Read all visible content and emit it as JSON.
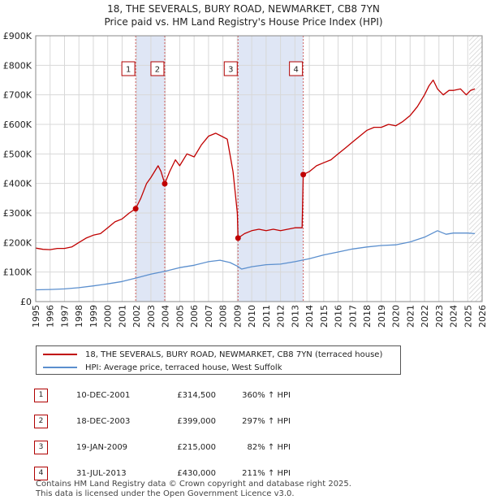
{
  "header": {
    "title_line1": "18, THE SEVERALS, BURY ROAD, NEWMARKET, CB8 7YN",
    "title_line2": "Price paid vs. HM Land Registry's House Price Index (HPI)"
  },
  "colors": {
    "price_line": "#c00000",
    "hpi_line": "#5b8fce",
    "highlight_fill": "#dfe6f5",
    "hatch": "#c8c8c8",
    "grid": "#d8d8d8",
    "dashed": "#d06060"
  },
  "chart_data": {
    "type": "line",
    "title": "Price paid vs. HM Land Registry's House Price Index (HPI)",
    "xlim": [
      1995,
      2026
    ],
    "ylim": [
      0,
      900000
    ],
    "x_ticks": [
      "1995",
      "1996",
      "1997",
      "1998",
      "1999",
      "2000",
      "2001",
      "2002",
      "2003",
      "2004",
      "2005",
      "2006",
      "2007",
      "2008",
      "2009",
      "2010",
      "2011",
      "2012",
      "2013",
      "2014",
      "2015",
      "2016",
      "2017",
      "2018",
      "2019",
      "2020",
      "2021",
      "2022",
      "2023",
      "2024",
      "2025",
      "2026"
    ],
    "y_ticks": [
      {
        "value": 0,
        "label": "£0"
      },
      {
        "value": 100000,
        "label": "£100K"
      },
      {
        "value": 200000,
        "label": "£200K"
      },
      {
        "value": 300000,
        "label": "£300K"
      },
      {
        "value": 400000,
        "label": "£400K"
      },
      {
        "value": 500000,
        "label": "£500K"
      },
      {
        "value": 600000,
        "label": "£600K"
      },
      {
        "value": 700000,
        "label": "£700K"
      },
      {
        "value": 800000,
        "label": "£800K"
      },
      {
        "value": 900000,
        "label": "£900K"
      }
    ],
    "highlight_spans": [
      [
        2001.94,
        2003.96
      ],
      [
        2009.05,
        2013.58
      ]
    ],
    "future_from": 2025.1,
    "series": [
      {
        "name": "18, THE SEVERALS, BURY ROAD, NEWMARKET, CB8 7YN (terraced house)",
        "x": [
          1995.0,
          1995.5,
          1996.0,
          1996.5,
          1997.0,
          1997.5,
          1998.0,
          1998.5,
          1999.0,
          1999.5,
          2000.0,
          2000.5,
          2001.0,
          2001.5,
          2001.94,
          2002.3,
          2002.7,
          2003.0,
          2003.5,
          2003.7,
          2003.96,
          2004.3,
          2004.7,
          2005.0,
          2005.5,
          2006.0,
          2006.5,
          2007.0,
          2007.5,
          2007.9,
          2008.3,
          2008.7,
          2009.0,
          2009.05,
          2009.5,
          2010.0,
          2010.5,
          2011.0,
          2011.5,
          2012.0,
          2012.5,
          2013.0,
          2013.5,
          2013.58,
          2014.0,
          2014.5,
          2015.0,
          2015.5,
          2016.0,
          2016.5,
          2017.0,
          2017.5,
          2018.0,
          2018.5,
          2019.0,
          2019.5,
          2020.0,
          2020.5,
          2021.0,
          2021.5,
          2022.0,
          2022.3,
          2022.6,
          2022.9,
          2023.3,
          2023.7,
          2024.0,
          2024.5,
          2024.9,
          2025.2,
          2025.5
        ],
        "values": [
          181000,
          177000,
          176000,
          180000,
          180000,
          185000,
          200000,
          215000,
          225000,
          230000,
          250000,
          270000,
          280000,
          300000,
          314500,
          350000,
          400000,
          420000,
          460000,
          440000,
          399000,
          440000,
          480000,
          460000,
          500000,
          490000,
          530000,
          560000,
          570000,
          560000,
          550000,
          440000,
          300000,
          215000,
          230000,
          240000,
          245000,
          240000,
          245000,
          240000,
          245000,
          250000,
          250000,
          430000,
          440000,
          460000,
          470000,
          480000,
          500000,
          520000,
          540000,
          560000,
          580000,
          590000,
          590000,
          600000,
          595000,
          610000,
          630000,
          660000,
          700000,
          730000,
          750000,
          720000,
          700000,
          715000,
          715000,
          720000,
          700000,
          715000,
          720000
        ]
      },
      {
        "name": "HPI: Average price, terraced house, West Suffolk",
        "x": [
          1995.0,
          1996.0,
          1997.0,
          1998.0,
          1999.0,
          2000.0,
          2001.0,
          2002.0,
          2003.0,
          2004.0,
          2005.0,
          2006.0,
          2007.0,
          2007.8,
          2008.5,
          2009.0,
          2009.3,
          2010.0,
          2011.0,
          2012.0,
          2013.0,
          2014.0,
          2015.0,
          2016.0,
          2017.0,
          2018.0,
          2019.0,
          2020.0,
          2021.0,
          2022.0,
          2022.9,
          2023.5,
          2024.0,
          2025.0,
          2025.5
        ],
        "values": [
          40000,
          41000,
          43000,
          47000,
          53000,
          60000,
          68000,
          80000,
          93000,
          103000,
          115000,
          123000,
          135000,
          140000,
          132000,
          120000,
          110000,
          118000,
          125000,
          127000,
          135000,
          145000,
          158000,
          168000,
          178000,
          185000,
          190000,
          192000,
          202000,
          218000,
          240000,
          228000,
          232000,
          232000,
          230000
        ]
      }
    ],
    "transactions": [
      {
        "num": "1",
        "date": "10-DEC-2001",
        "price": "£314,500",
        "hpi": "360% ↑ HPI",
        "x": 2001.94,
        "value": 314500
      },
      {
        "num": "2",
        "date": "18-DEC-2003",
        "price": "£399,000",
        "hpi": "297% ↑ HPI",
        "x": 2003.96,
        "value": 399000
      },
      {
        "num": "3",
        "date": "19-JAN-2009",
        "price": "£215,000",
        "hpi": "82% ↑ HPI",
        "x": 2009.05,
        "value": 215000
      },
      {
        "num": "4",
        "date": "31-JUL-2013",
        "price": "£430,000",
        "hpi": "211% ↑ HPI",
        "x": 2013.58,
        "value": 430000
      }
    ]
  },
  "legend": {
    "price_label": "18, THE SEVERALS, BURY ROAD, NEWMARKET, CB8 7YN (terraced house)",
    "hpi_label": "HPI: Average price, terraced house, West Suffolk"
  },
  "footer": {
    "line1": "Contains HM Land Registry data © Crown copyright and database right 2025.",
    "line2": "This data is licensed under the Open Government Licence v3.0."
  }
}
